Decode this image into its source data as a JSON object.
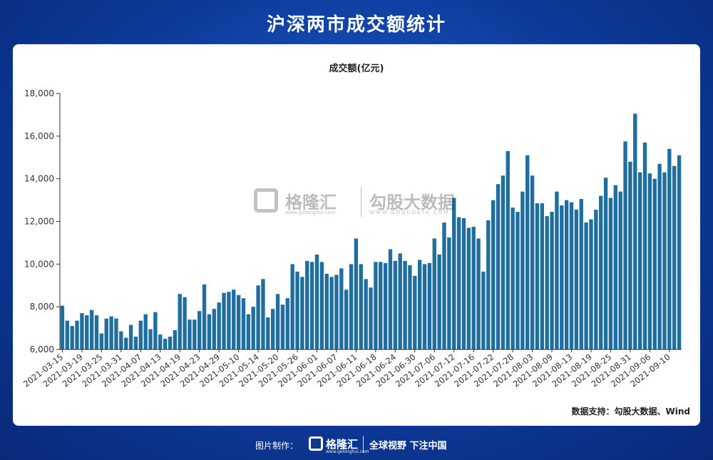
{
  "page": {
    "title": "沪深两市成交额统计",
    "source_text": "数据支持：勾股大数据、Wind",
    "watermark_brand": "格隆汇",
    "watermark_url": "www.gelonghui.com",
    "watermark_brand2": "勾股大数据",
    "watermark_url2": "WWW.GOGUDATA.COM",
    "footer_made_label": "图片制作：",
    "footer_brand": "格隆汇",
    "footer_url": "www.gelonghui.com",
    "footer_slogan": "全球视野 下注中国"
  },
  "colors": {
    "bar": "#1f6e9e",
    "axis": "#333333",
    "background_top": "#1f5fd0",
    "background_bottom": "#082a78"
  },
  "chart_data": {
    "type": "bar",
    "title": "成交额(亿元)",
    "xlabel": "",
    "ylabel": "",
    "ylim": [
      6000,
      18000
    ],
    "yticks": [
      6000,
      8000,
      10000,
      12000,
      14000,
      16000,
      18000
    ],
    "ytick_labels": [
      "6,000",
      "8,000",
      "10,000",
      "12,000",
      "14,000",
      "16,000",
      "18,000"
    ],
    "grid": false,
    "legend": "none",
    "xtick_labels": [
      "2021-03-15",
      "2021-03-19",
      "2021-03-25",
      "2021-03-31",
      "2021-04-07",
      "2021-04-13",
      "2021-04-19",
      "2021-04-23",
      "2021-04-29",
      "2021-05-10",
      "2021-05-14",
      "2021-05-20",
      "2021-05-26",
      "2021-06-01",
      "2021-06-07",
      "2021-06-11",
      "2021-06-18",
      "2021-06-24",
      "2021-06-30",
      "2021-07-06",
      "2021-07-12",
      "2021-07-16",
      "2021-07-22",
      "2021-07-28",
      "2021-08-03",
      "2021-08-09",
      "2021-08-13",
      "2021-08-19",
      "2021-08-25",
      "2021-08-31",
      "2021-09-06",
      "2021-09-10"
    ],
    "values": [
      8050,
      7350,
      7100,
      7350,
      7700,
      7600,
      7850,
      7600,
      6750,
      7450,
      7550,
      7450,
      6850,
      6550,
      7150,
      6600,
      7350,
      7650,
      6950,
      7750,
      6700,
      6500,
      6600,
      6900,
      8600,
      8450,
      7400,
      7400,
      7800,
      9050,
      7650,
      7900,
      8200,
      8650,
      8700,
      8800,
      8550,
      8400,
      7650,
      8000,
      9000,
      9300,
      7500,
      7900,
      8600,
      8100,
      8400,
      10000,
      9650,
      9400,
      10150,
      10100,
      10450,
      10100,
      9550,
      9400,
      9500,
      9800,
      8800,
      10000,
      11200,
      10000,
      9300,
      8900,
      10100,
      10100,
      10050,
      10700,
      10150,
      10500,
      10150,
      9950,
      9450,
      10200,
      10000,
      10050,
      11200,
      10450,
      11950,
      11250,
      13100,
      12200,
      12150,
      11700,
      11750,
      11200,
      9650,
      12050,
      13000,
      13750,
      14150,
      15300,
      12650,
      12450,
      13400,
      15100,
      14150,
      12850,
      12850,
      12250,
      12450,
      13400,
      12750,
      13000,
      12900,
      12550,
      13050,
      11950,
      12100,
      12550,
      13200,
      14050,
      13100,
      13700,
      13400,
      15750,
      14800,
      17050,
      14300,
      15700,
      14250,
      14000,
      14700,
      14300,
      15400,
      14600,
      15100
    ]
  }
}
